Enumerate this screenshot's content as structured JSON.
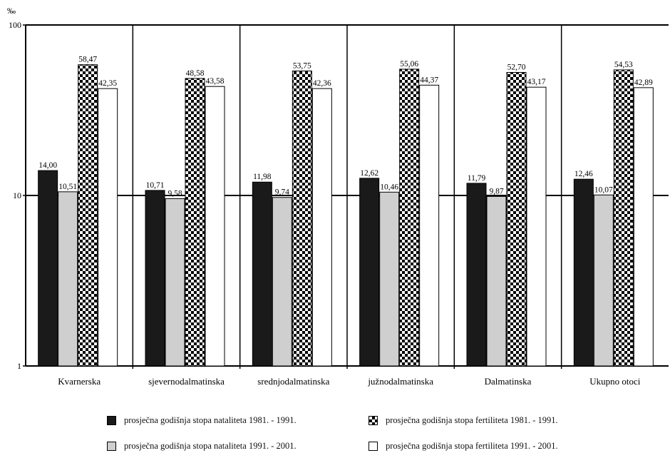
{
  "chart_data": {
    "type": "bar",
    "scale": "log",
    "unit": "‰",
    "ylim": [
      1,
      100
    ],
    "yticks": [
      "1",
      "10",
      "100"
    ],
    "grid": "major lines at 10 and 100",
    "categories": [
      "Kvarnerska",
      "sjevernodalmatinska",
      "srednjodalmatinska",
      "južnodalmatinska",
      "Dalmatinska",
      "Ukupno otoci"
    ],
    "series": [
      {
        "name": "prosječna godišnja stopa nataliteta 1981. - 1991.",
        "pattern": "solid-black",
        "color": "#1a1a1a",
        "values": [
          14.0,
          10.71,
          11.98,
          12.62,
          11.79,
          12.46
        ],
        "labels": [
          "14,00",
          "10,71",
          "11,98",
          "12,62",
          "11,79",
          "12,46"
        ]
      },
      {
        "name": "prosječna godišnja stopa nataliteta 1991. - 2001.",
        "pattern": "solid-gray",
        "color": "#cfcfcf",
        "values": [
          10.51,
          9.58,
          9.74,
          10.46,
          9.87,
          10.07
        ],
        "labels": [
          "10,51",
          "9,58",
          "9,74",
          "10,46",
          "9,87",
          "10,07"
        ]
      },
      {
        "name": "prosječna godišnja stopa fertiliteta 1981. - 1991.",
        "pattern": "checkerboard",
        "color": "#000000",
        "values": [
          58.47,
          48.58,
          53.75,
          55.06,
          52.7,
          54.53
        ],
        "labels": [
          "58,47",
          "48,58",
          "53,75",
          "55,06",
          "52,70",
          "54,53"
        ]
      },
      {
        "name": "prosječna godišnja stopa fertiliteta 1991. - 2001.",
        "pattern": "white",
        "color": "#ffffff",
        "values": [
          42.35,
          43.58,
          42.36,
          44.37,
          43.17,
          42.89
        ],
        "labels": [
          "42,35",
          "43,58",
          "42,36",
          "44,37",
          "43,17",
          "42,89"
        ]
      }
    ],
    "legend_position": "bottom, two columns"
  }
}
